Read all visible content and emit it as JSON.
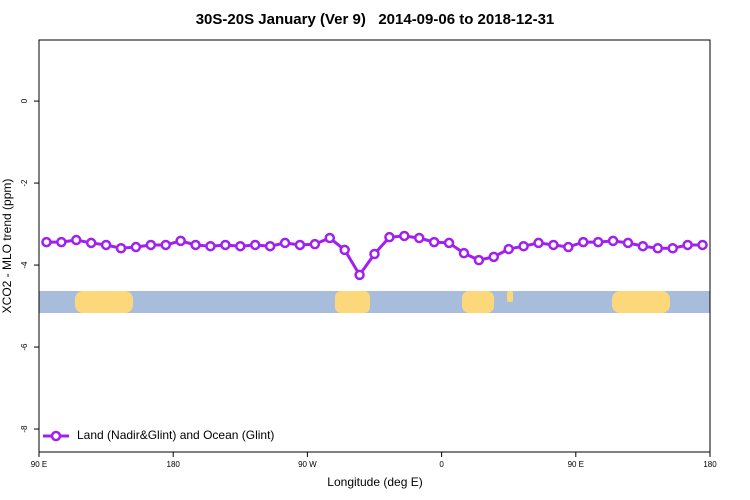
{
  "chart_data": {
    "type": "line",
    "title": "30S-20S January (Ver 9)   2014-09-06 to 2018-12-31",
    "x_label": "Longitude (deg E)",
    "y_label": "XCO2 - MLO trend (ppm)",
    "x": [
      95,
      105,
      115,
      125,
      135,
      145,
      155,
      165,
      175,
      185,
      195,
      205,
      215,
      225,
      235,
      245,
      255,
      265,
      275,
      285,
      295,
      305,
      315,
      325,
      335,
      345,
      355,
      365,
      375,
      385,
      395,
      405,
      415,
      425,
      435,
      445,
      455,
      465,
      475,
      485,
      495,
      505,
      515,
      525,
      535
    ],
    "series": [
      {
        "name": "Land (Nadir&Glint) and Ocean (Glint)",
        "color": "#a020f0",
        "values": [
          -3.44,
          -3.44,
          -3.39,
          -3.46,
          -3.51,
          -3.59,
          -3.56,
          -3.51,
          -3.51,
          -3.41,
          -3.51,
          -3.54,
          -3.51,
          -3.54,
          -3.51,
          -3.54,
          -3.46,
          -3.51,
          -3.49,
          -3.34,
          -3.63,
          -4.24,
          -3.73,
          -3.32,
          -3.29,
          -3.34,
          -3.44,
          -3.46,
          -3.71,
          -3.88,
          -3.8,
          -3.61,
          -3.54,
          -3.46,
          -3.51,
          -3.56,
          -3.44,
          -3.44,
          -3.41,
          -3.46,
          -3.54,
          -3.59,
          -3.59,
          -3.51,
          -3.51
        ]
      }
    ],
    "xlim": [
      90,
      540
    ],
    "xticks": [
      {
        "value": 90,
        "label": "90 E"
      },
      180,
      {
        "value": 270,
        "label": "90 W"
      },
      {
        "value": 360,
        "label": "0"
      },
      {
        "value": 450,
        "label": "90 E"
      },
      {
        "value": 540,
        "label": "180"
      }
    ],
    "ylim": [
      -8.56,
      1.49
    ],
    "yticks": [
      0,
      -2,
      -4,
      -6,
      -8
    ],
    "legend": "bottomleft"
  }
}
